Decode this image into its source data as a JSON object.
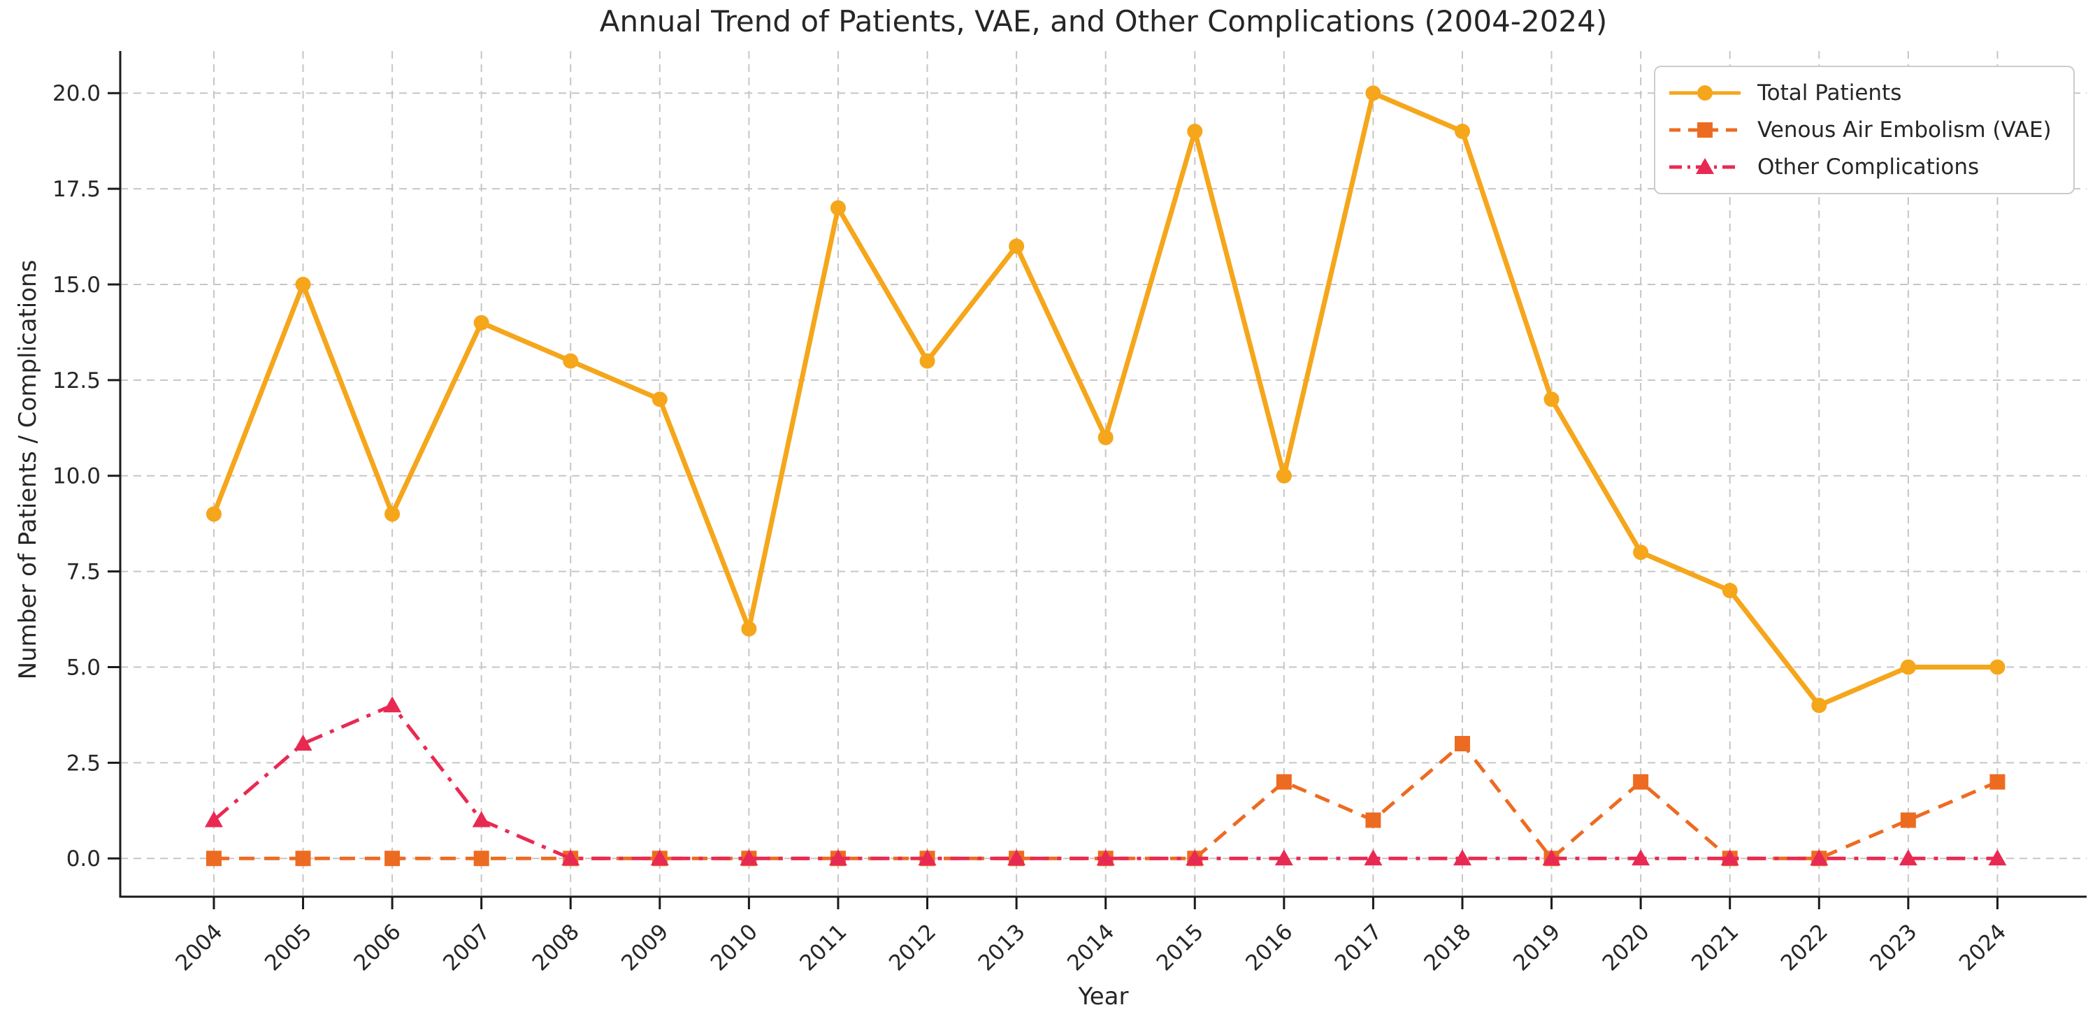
{
  "chart_data": {
    "type": "line",
    "title": "Annual Trend of Patients, VAE, and Other Complications (2004-2024)",
    "xlabel": "Year",
    "ylabel": "Number of Patients / Complications",
    "categories": [
      "2004",
      "2005",
      "2006",
      "2007",
      "2008",
      "2009",
      "2010",
      "2011",
      "2012",
      "2013",
      "2014",
      "2015",
      "2016",
      "2017",
      "2018",
      "2019",
      "2020",
      "2021",
      "2022",
      "2023",
      "2024"
    ],
    "series": [
      {
        "name": "Total Patients",
        "color": "#F5A61B",
        "linestyle": "solid",
        "marker": "circle",
        "values": [
          9,
          15,
          9,
          14,
          13,
          12,
          6,
          17,
          13,
          16,
          11,
          19,
          10,
          20,
          19,
          12,
          8,
          7,
          4,
          5,
          5
        ]
      },
      {
        "name": "Venous Air Embolism (VAE)",
        "color": "#ED6B21",
        "linestyle": "dashed",
        "marker": "square",
        "values": [
          0,
          0,
          0,
          0,
          0,
          0,
          0,
          0,
          0,
          0,
          0,
          0,
          2,
          1,
          3,
          0,
          2,
          0,
          0,
          1,
          2
        ]
      },
      {
        "name": "Other Complications",
        "color": "#E82A52",
        "linestyle": "dashdot",
        "marker": "triangle",
        "values": [
          1,
          3,
          4,
          1,
          0,
          0,
          0,
          0,
          0,
          0,
          0,
          0,
          0,
          0,
          0,
          0,
          0,
          0,
          0,
          0,
          0
        ]
      }
    ],
    "yticks": [
      0.0,
      2.5,
      5.0,
      7.5,
      10.0,
      12.5,
      15.0,
      17.5,
      20.0
    ],
    "ytick_labels": [
      "0.0",
      "2.5",
      "5.0",
      "7.5",
      "10.0",
      "12.5",
      "15.0",
      "17.5",
      "20.0"
    ],
    "ylim": [
      -1,
      21.1
    ],
    "grid": true,
    "grid_color": "#c6c6c6",
    "axis_color": "#1a1a1a",
    "legend_position": "upper right"
  }
}
